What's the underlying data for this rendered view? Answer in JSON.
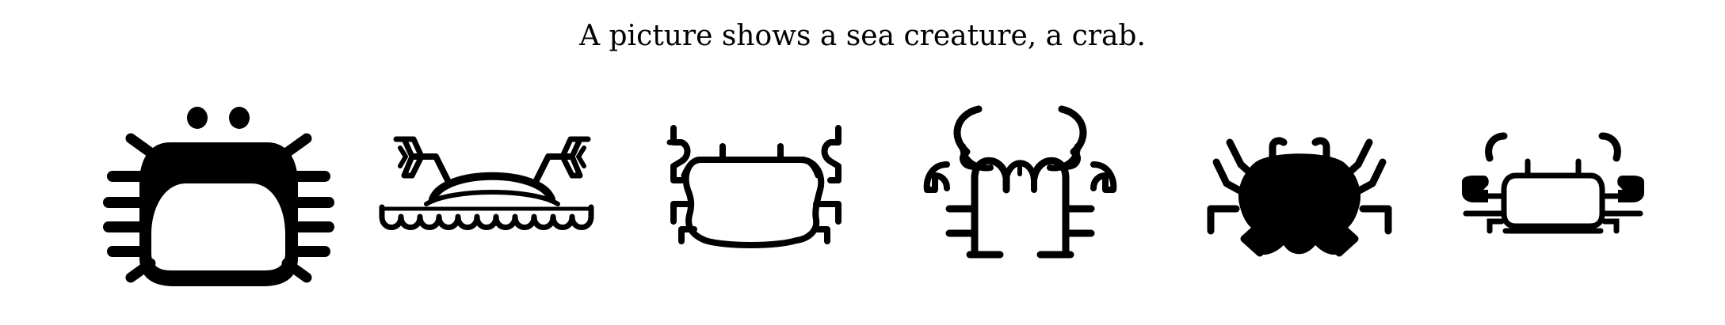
{
  "caption": "A picture shows a sea creature, a crab.",
  "colors": {
    "background": "#ffffff",
    "ink": "#000000"
  },
  "icons": [
    {
      "name": "crab-icon-round-shell"
    },
    {
      "name": "crab-icon-on-waves"
    },
    {
      "name": "crab-icon-outline"
    },
    {
      "name": "crab-icon-tall-claws"
    },
    {
      "name": "crab-icon-solid-spider"
    },
    {
      "name": "crab-icon-small-outline"
    }
  ]
}
